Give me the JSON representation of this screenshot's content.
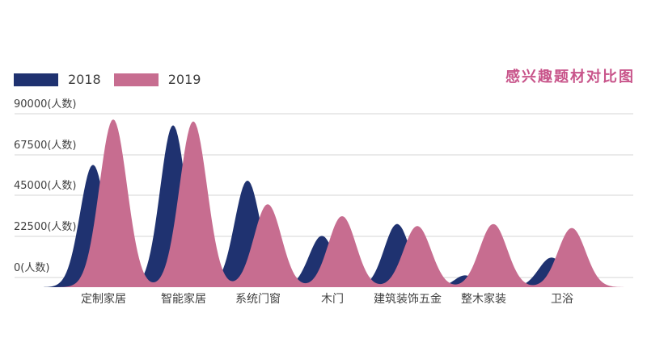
{
  "chart_data": {
    "type": "area",
    "title": "感兴趣题材对比图",
    "categories": [
      "定制家居",
      "智能家居",
      "系统门窗",
      "木门",
      "建筑装饰五金",
      "整木家装",
      "卫浴"
    ],
    "y_ticks": [
      "90000(人数)",
      "67500(人数)",
      "45000(人数)",
      "22500(人数)",
      "0(人数)"
    ],
    "y_tick_values": [
      90000,
      67500,
      45000,
      22500,
      0
    ],
    "ylim": [
      0,
      90000
    ],
    "unit": "人数",
    "grid": "horizontal",
    "legend_position": "top-left",
    "series": [
      {
        "name": "2018",
        "color": "#1f3270",
        "values": [
          62000,
          82000,
          54000,
          26000,
          32000,
          6000,
          15000
        ]
      },
      {
        "name": "2019",
        "color": "#c76d90",
        "values": [
          85000,
          84000,
          42000,
          36000,
          31000,
          32000,
          30000
        ]
      }
    ],
    "colors": {
      "title": "#c8548a",
      "text": "#3f3f3f",
      "grid": "#d6d6d6"
    }
  }
}
